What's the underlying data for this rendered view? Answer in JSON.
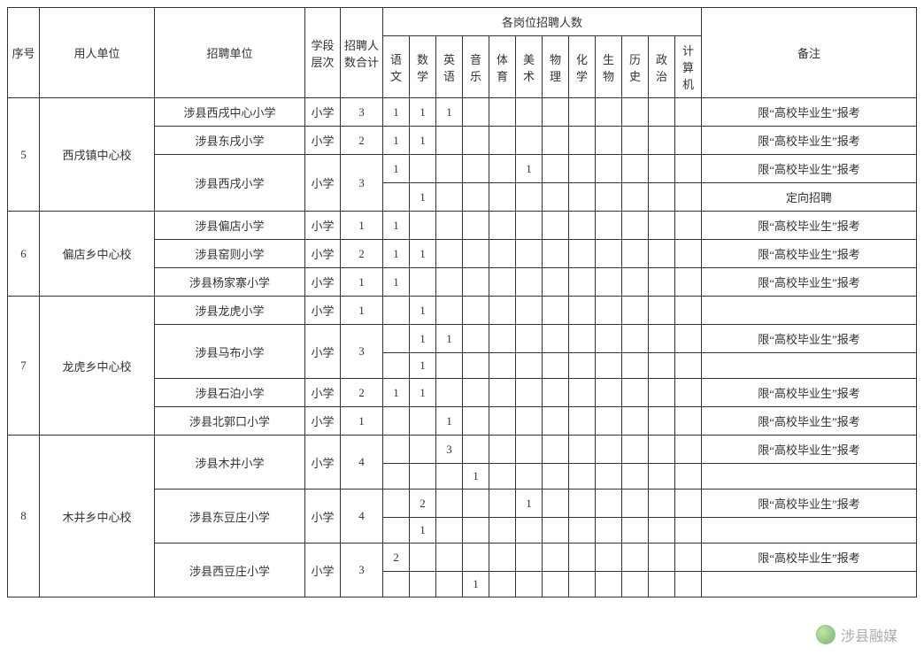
{
  "header": {
    "seq": "序号",
    "employer": "用人单位",
    "unit": "招聘单位",
    "level": "学段层次",
    "total": "招聘人数合计",
    "subjects_group": "各岗位招聘人数",
    "subjects": [
      "语文",
      "数学",
      "英语",
      "音乐",
      "体育",
      "美术",
      "物理",
      "化学",
      "生物",
      "历史",
      "政治",
      "计算机"
    ],
    "remark": "备注"
  },
  "remark_text": {
    "grad": "限“高校毕业生”报考",
    "direct": "定向招聘"
  },
  "groups": [
    {
      "seq": "5",
      "employer": "西戌镇中心校",
      "rows": [
        {
          "unit": "涉县西戌中心小学",
          "level": "小学",
          "total": "3",
          "cells": [
            "1",
            "1",
            "1",
            "",
            "",
            "",
            "",
            "",
            "",
            "",
            "",
            ""
          ],
          "remark": "grad",
          "split": false
        },
        {
          "unit": "涉县东戌小学",
          "level": "小学",
          "total": "2",
          "cells": [
            "1",
            "1",
            "",
            "",
            "",
            "",
            "",
            "",
            "",
            "",
            "",
            ""
          ],
          "remark": "grad",
          "split": false
        },
        {
          "unit": "涉县西戌小学",
          "level": "小学",
          "total": "3",
          "split": true,
          "sub": [
            {
              "cells": [
                "1",
                "",
                "",
                "",
                "",
                "1",
                "",
                "",
                "",
                "",
                "",
                ""
              ],
              "remark": "grad"
            },
            {
              "cells": [
                "",
                "1",
                "",
                "",
                "",
                "",
                "",
                "",
                "",
                "",
                "",
                ""
              ],
              "remark": "direct"
            }
          ]
        }
      ]
    },
    {
      "seq": "6",
      "employer": "偏店乡中心校",
      "rows": [
        {
          "unit": "涉县偏店小学",
          "level": "小学",
          "total": "1",
          "cells": [
            "1",
            "",
            "",
            "",
            "",
            "",
            "",
            "",
            "",
            "",
            "",
            ""
          ],
          "remark": "grad",
          "split": false
        },
        {
          "unit": "涉县窑则小学",
          "level": "小学",
          "total": "2",
          "cells": [
            "1",
            "1",
            "",
            "",
            "",
            "",
            "",
            "",
            "",
            "",
            "",
            ""
          ],
          "remark": "grad",
          "split": false
        },
        {
          "unit": "涉县杨家寨小学",
          "level": "小学",
          "total": "1",
          "cells": [
            "1",
            "",
            "",
            "",
            "",
            "",
            "",
            "",
            "",
            "",
            "",
            ""
          ],
          "remark": "grad",
          "split": false
        }
      ]
    },
    {
      "seq": "7",
      "employer": "龙虎乡中心校",
      "rows": [
        {
          "unit": "涉县龙虎小学",
          "level": "小学",
          "total": "1",
          "cells": [
            "",
            "1",
            "",
            "",
            "",
            "",
            "",
            "",
            "",
            "",
            "",
            ""
          ],
          "remark": "",
          "split": false
        },
        {
          "unit": "涉县马布小学",
          "level": "小学",
          "total": "3",
          "split": true,
          "sub": [
            {
              "cells": [
                "",
                "1",
                "1",
                "",
                "",
                "",
                "",
                "",
                "",
                "",
                "",
                ""
              ],
              "remark": "grad"
            },
            {
              "cells": [
                "",
                "1",
                "",
                "",
                "",
                "",
                "",
                "",
                "",
                "",
                "",
                ""
              ],
              "remark": ""
            }
          ]
        },
        {
          "unit": "涉县石泊小学",
          "level": "小学",
          "total": "2",
          "cells": [
            "1",
            "1",
            "",
            "",
            "",
            "",
            "",
            "",
            "",
            "",
            "",
            ""
          ],
          "remark": "grad",
          "split": false
        },
        {
          "unit": "涉县北郭口小学",
          "level": "小学",
          "total": "1",
          "cells": [
            "",
            "",
            "1",
            "",
            "",
            "",
            "",
            "",
            "",
            "",
            "",
            ""
          ],
          "remark": "grad",
          "split": false
        }
      ]
    },
    {
      "seq": "8",
      "employer": "木井乡中心校",
      "rows": [
        {
          "unit": "涉县木井小学",
          "level": "小学",
          "total": "4",
          "split": true,
          "sub": [
            {
              "cells": [
                "",
                "",
                "3",
                "",
                "",
                "",
                "",
                "",
                "",
                "",
                "",
                ""
              ],
              "remark": "grad"
            },
            {
              "cells": [
                "",
                "",
                "",
                "1",
                "",
                "",
                "",
                "",
                "",
                "",
                "",
                ""
              ],
              "remark": ""
            }
          ]
        },
        {
          "unit": "涉县东豆庄小学",
          "level": "小学",
          "total": "4",
          "split": true,
          "sub": [
            {
              "cells": [
                "",
                "2",
                "",
                "",
                "",
                "1",
                "",
                "",
                "",
                "",
                "",
                ""
              ],
              "remark": "grad"
            },
            {
              "cells": [
                "",
                "1",
                "",
                "",
                "",
                "",
                "",
                "",
                "",
                "",
                "",
                ""
              ],
              "remark": ""
            }
          ]
        },
        {
          "unit": "涉县西豆庄小学",
          "level": "小学",
          "total": "3",
          "split": true,
          "sub": [
            {
              "cells": [
                "2",
                "",
                "",
                "",
                "",
                "",
                "",
                "",
                "",
                "",
                "",
                ""
              ],
              "remark": "grad"
            },
            {
              "cells": [
                "",
                "",
                "",
                "1",
                "",
                "",
                "",
                "",
                "",
                "",
                "",
                ""
              ],
              "remark": ""
            }
          ]
        }
      ]
    }
  ],
  "watermark": "涉县融媒"
}
